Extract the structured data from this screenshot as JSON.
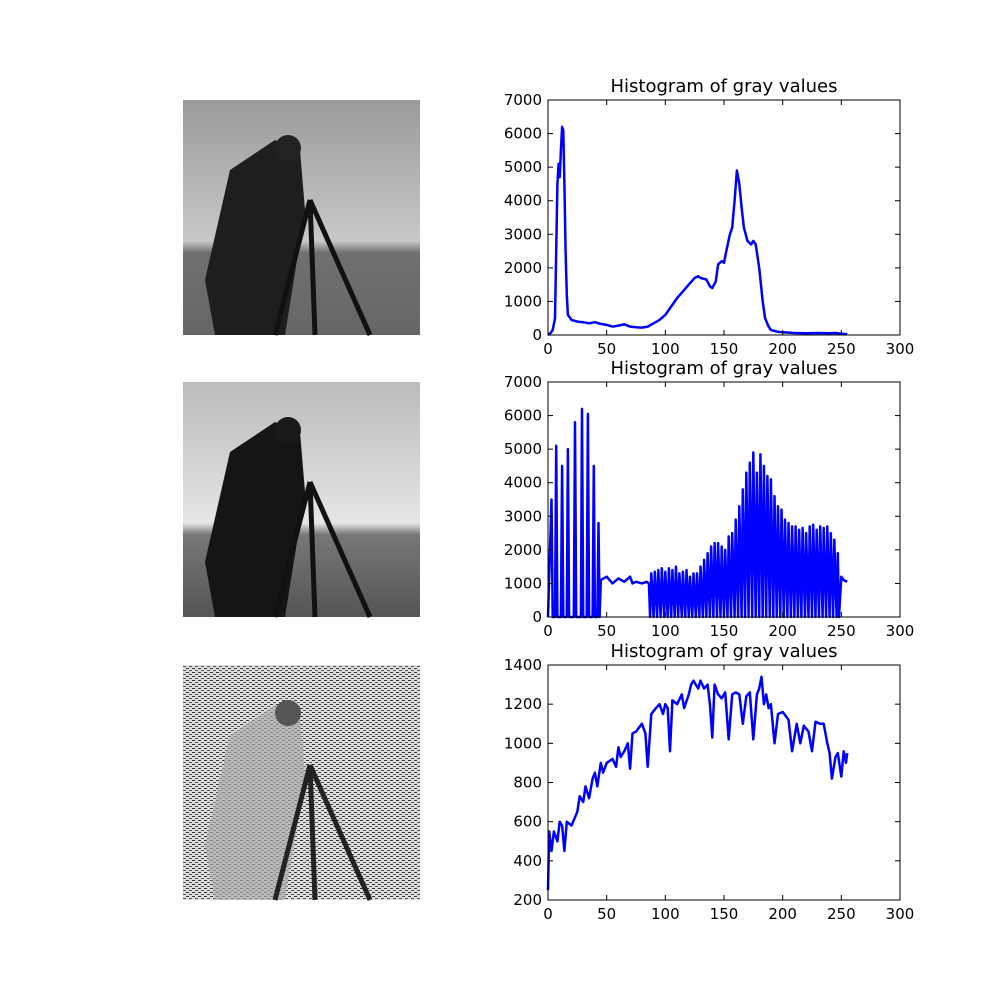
{
  "chart_data": [
    {
      "type": "line",
      "title": "Histogram of gray values",
      "color": "#0000ff",
      "x": [
        0,
        2,
        4,
        6,
        8,
        9,
        10,
        11,
        12,
        13,
        14,
        15,
        16,
        17,
        20,
        25,
        30,
        35,
        40,
        45,
        50,
        55,
        60,
        65,
        70,
        75,
        80,
        85,
        90,
        95,
        100,
        105,
        110,
        115,
        120,
        125,
        128,
        130,
        135,
        138,
        140,
        143,
        145,
        148,
        150,
        152,
        155,
        157,
        159,
        161,
        163,
        165,
        167,
        170,
        173,
        175,
        177,
        180,
        183,
        185,
        188,
        190,
        195,
        200,
        210,
        220,
        230,
        240,
        245,
        250,
        255
      ],
      "values": [
        0,
        50,
        150,
        500,
        4500,
        5100,
        4700,
        5500,
        6200,
        6100,
        4500,
        2500,
        1200,
        600,
        450,
        400,
        380,
        350,
        380,
        330,
        300,
        250,
        280,
        320,
        250,
        230,
        220,
        250,
        350,
        450,
        600,
        850,
        1100,
        1300,
        1500,
        1700,
        1750,
        1700,
        1650,
        1450,
        1400,
        1600,
        2100,
        2200,
        2150,
        2500,
        3000,
        3200,
        4000,
        4900,
        4500,
        3800,
        3200,
        2800,
        2700,
        2800,
        2700,
        2000,
        1000,
        500,
        250,
        150,
        100,
        80,
        60,
        50,
        60,
        50,
        60,
        40,
        20
      ],
      "xlim": [
        0,
        300
      ],
      "xticks": [
        0,
        50,
        100,
        150,
        200,
        250,
        300
      ],
      "ylim": [
        0,
        7000
      ],
      "yticks": [
        0,
        1000,
        2000,
        3000,
        4000,
        5000,
        6000,
        7000
      ]
    },
    {
      "type": "line",
      "title": "Histogram of gray values",
      "color": "#0000ff",
      "x": [
        0,
        3,
        4,
        6,
        7,
        8,
        11,
        12,
        13,
        16,
        17,
        18,
        22,
        23,
        24,
        28,
        29,
        30,
        33,
        34,
        35,
        38,
        39,
        40,
        42,
        43,
        44,
        45,
        50,
        55,
        60,
        65,
        70,
        72,
        75,
        80,
        84,
        86,
        87,
        88,
        90,
        91,
        93,
        94,
        96,
        97,
        99,
        100,
        102,
        103,
        105,
        106,
        108,
        109,
        111,
        112,
        114,
        115,
        117,
        118,
        120,
        121,
        123,
        124,
        126,
        127,
        129,
        130,
        132,
        133,
        135,
        136,
        138,
        139,
        141,
        142,
        144,
        145,
        147,
        148,
        150,
        151,
        153,
        154,
        156,
        157,
        159,
        160,
        162,
        163,
        165,
        166,
        168,
        169,
        171,
        172,
        174,
        175,
        177,
        178,
        180,
        181,
        183,
        184,
        186,
        187,
        189,
        190,
        192,
        193,
        195,
        196,
        198,
        199,
        201,
        202,
        204,
        205,
        207,
        208,
        210,
        211,
        213,
        214,
        216,
        217,
        219,
        220,
        222,
        223,
        225,
        226,
        228,
        229,
        231,
        232,
        234,
        235,
        237,
        238,
        240,
        241,
        243,
        244,
        246,
        247,
        248,
        250,
        252,
        255
      ],
      "values": [
        0,
        3500,
        0,
        0,
        5100,
        0,
        0,
        4500,
        0,
        0,
        5000,
        0,
        0,
        5800,
        0,
        0,
        6200,
        0,
        0,
        6050,
        0,
        0,
        4500,
        0,
        0,
        2800,
        0,
        1100,
        1200,
        1000,
        1150,
        1050,
        1200,
        1000,
        1050,
        1000,
        1050,
        1000,
        0,
        1300,
        0,
        1350,
        0,
        1400,
        0,
        1450,
        0,
        1350,
        0,
        1450,
        0,
        1400,
        0,
        1500,
        0,
        1300,
        0,
        1350,
        0,
        1400,
        0,
        1200,
        0,
        1300,
        0,
        1300,
        0,
        1500,
        0,
        1700,
        0,
        1900,
        0,
        2100,
        0,
        2200,
        0,
        2200,
        0,
        2100,
        0,
        2000,
        0,
        2400,
        0,
        2500,
        0,
        2900,
        0,
        3300,
        0,
        3800,
        0,
        4300,
        0,
        4600,
        0,
        4900,
        0,
        4300,
        0,
        4850,
        0,
        4500,
        0,
        4200,
        0,
        4100,
        0,
        3600,
        0,
        3300,
        0,
        3200,
        0,
        2900,
        0,
        2800,
        0,
        2700,
        0,
        2700,
        0,
        2600,
        0,
        2650,
        0,
        2500,
        0,
        2700,
        0,
        2750,
        0,
        2600,
        0,
        2700,
        0,
        2650,
        0,
        2700,
        0,
        2500,
        0,
        2300,
        0,
        1900,
        0,
        1200,
        1100,
        1050
      ],
      "xlim": [
        0,
        300
      ],
      "xticks": [
        0,
        50,
        100,
        150,
        200,
        250,
        300
      ],
      "ylim": [
        0,
        7000
      ],
      "yticks": [
        0,
        1000,
        2000,
        3000,
        4000,
        5000,
        6000,
        7000
      ]
    },
    {
      "type": "line",
      "title": "Histogram of gray values",
      "color": "#0000ff",
      "x": [
        0,
        1,
        3,
        5,
        8,
        10,
        12,
        14,
        16,
        20,
        25,
        27,
        30,
        32,
        35,
        38,
        40,
        42,
        45,
        47,
        50,
        55,
        58,
        60,
        62,
        65,
        68,
        70,
        72,
        75,
        80,
        83,
        85,
        88,
        92,
        95,
        98,
        100,
        102,
        104,
        106,
        110,
        114,
        116,
        120,
        122,
        124,
        126,
        128,
        130,
        133,
        136,
        138,
        140,
        142,
        145,
        148,
        151,
        154,
        157,
        160,
        163,
        166,
        169,
        172,
        175,
        178,
        180,
        182,
        184,
        186,
        188,
        190,
        193,
        196,
        200,
        205,
        208,
        212,
        215,
        218,
        222,
        225,
        228,
        232,
        235,
        238,
        240,
        242,
        245,
        247,
        250,
        252,
        254,
        255
      ],
      "values": [
        250,
        550,
        450,
        550,
        500,
        600,
        580,
        450,
        600,
        580,
        650,
        730,
        700,
        780,
        720,
        820,
        850,
        780,
        900,
        850,
        900,
        920,
        880,
        980,
        930,
        960,
        1000,
        870,
        1050,
        1060,
        1100,
        1050,
        880,
        1150,
        1180,
        1200,
        1150,
        1200,
        1180,
        960,
        1220,
        1200,
        1250,
        1180,
        1250,
        1300,
        1320,
        1300,
        1280,
        1320,
        1280,
        1300,
        1200,
        1030,
        1300,
        1250,
        1230,
        1260,
        1020,
        1250,
        1260,
        1250,
        1100,
        1240,
        1260,
        1020,
        1250,
        1280,
        1340,
        1200,
        1250,
        1180,
        1200,
        1000,
        1150,
        1160,
        1120,
        960,
        1100,
        1000,
        1090,
        1060,
        960,
        1110,
        1100,
        1100,
        1000,
        950,
        820,
        930,
        950,
        830,
        960,
        900,
        950
      ],
      "xlim": [
        0,
        300
      ],
      "xticks": [
        0,
        50,
        100,
        150,
        200,
        250,
        300
      ],
      "ylim": [
        200,
        1400
      ],
      "yticks": [
        200,
        400,
        600,
        800,
        1000,
        1200,
        1400
      ]
    }
  ]
}
